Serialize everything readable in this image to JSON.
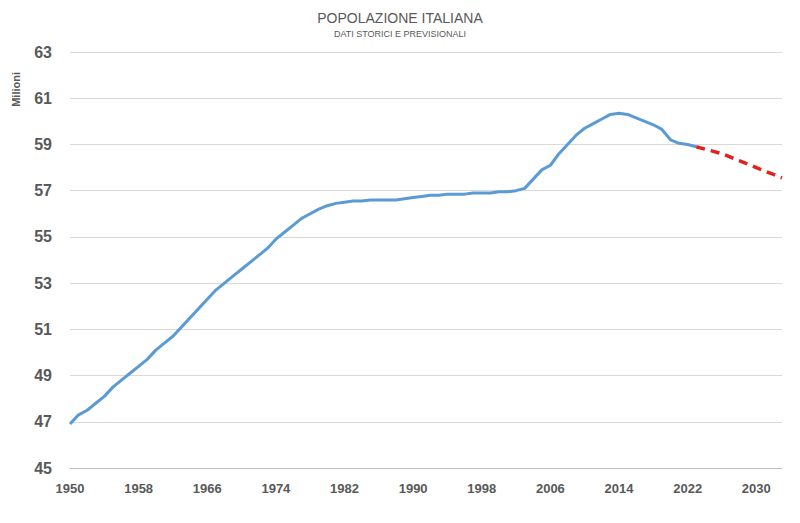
{
  "chart_data": {
    "type": "line",
    "title": "POPOLAZIONE ITALIANA",
    "subtitle": "DATI STORICI E PREVISIONALI",
    "y_label": "Milioni",
    "x": [
      1950,
      1951,
      1952,
      1953,
      1954,
      1955,
      1956,
      1957,
      1958,
      1959,
      1960,
      1961,
      1962,
      1963,
      1964,
      1965,
      1966,
      1967,
      1968,
      1969,
      1970,
      1971,
      1972,
      1973,
      1974,
      1975,
      1976,
      1977,
      1978,
      1979,
      1980,
      1981,
      1982,
      1983,
      1984,
      1985,
      1986,
      1987,
      1988,
      1989,
      1990,
      1991,
      1992,
      1993,
      1994,
      1995,
      1996,
      1997,
      1998,
      1999,
      2000,
      2001,
      2002,
      2003,
      2004,
      2005,
      2006,
      2007,
      2008,
      2009,
      2010,
      2011,
      2012,
      2013,
      2014,
      2015,
      2016,
      2017,
      2018,
      2019,
      2020,
      2021,
      2022,
      2023,
      2024,
      2025,
      2026,
      2027,
      2028,
      2029,
      2030,
      2031,
      2032,
      2033
    ],
    "series": [
      {
        "color": "#5b9bd5",
        "line_style": "solid",
        "values": [
          46.9,
          47.3,
          47.5,
          47.8,
          48.1,
          48.5,
          48.8,
          49.1,
          49.4,
          49.7,
          50.1,
          50.4,
          50.7,
          51.1,
          51.5,
          51.9,
          52.3,
          52.7,
          53.0,
          53.3,
          53.6,
          53.9,
          54.2,
          54.5,
          54.9,
          55.2,
          55.5,
          55.8,
          56.0,
          56.2,
          56.35,
          56.45,
          56.5,
          56.55,
          56.55,
          56.6,
          56.6,
          56.6,
          56.6,
          56.65,
          56.7,
          56.75,
          56.8,
          56.8,
          56.85,
          56.85,
          56.85,
          56.9,
          56.9,
          56.9,
          56.95,
          56.95,
          57.0,
          57.1,
          57.5,
          57.9,
          58.1,
          58.6,
          59.0,
          59.4,
          59.7,
          59.9,
          60.1,
          60.3,
          60.35,
          60.3,
          60.15,
          60.0,
          59.85,
          59.65,
          59.2,
          59.05,
          59.0,
          58.9,
          null,
          null,
          null,
          null,
          null,
          null,
          null,
          null,
          null,
          null
        ]
      },
      {
        "color": "#e3211c",
        "line_style": "dashed",
        "values": [
          null,
          null,
          null,
          null,
          null,
          null,
          null,
          null,
          null,
          null,
          null,
          null,
          null,
          null,
          null,
          null,
          null,
          null,
          null,
          null,
          null,
          null,
          null,
          null,
          null,
          null,
          null,
          null,
          null,
          null,
          null,
          null,
          null,
          null,
          null,
          null,
          null,
          null,
          null,
          null,
          null,
          null,
          null,
          null,
          null,
          null,
          null,
          null,
          null,
          null,
          null,
          null,
          null,
          null,
          null,
          null,
          null,
          null,
          null,
          null,
          null,
          null,
          null,
          null,
          null,
          null,
          null,
          null,
          null,
          null,
          null,
          null,
          null,
          58.9,
          58.8,
          58.7,
          58.6,
          58.45,
          58.3,
          58.15,
          58.0,
          57.85,
          57.7,
          57.55
        ]
      }
    ],
    "xlim": [
      1950,
      2033
    ],
    "xticks": [
      1950,
      1958,
      1966,
      1974,
      1982,
      1990,
      1998,
      2006,
      2014,
      2022,
      2030
    ],
    "ylim": [
      45,
      63
    ],
    "yticks": [
      45,
      47,
      49,
      51,
      53,
      55,
      57,
      59,
      61,
      63
    ],
    "grid": true
  }
}
